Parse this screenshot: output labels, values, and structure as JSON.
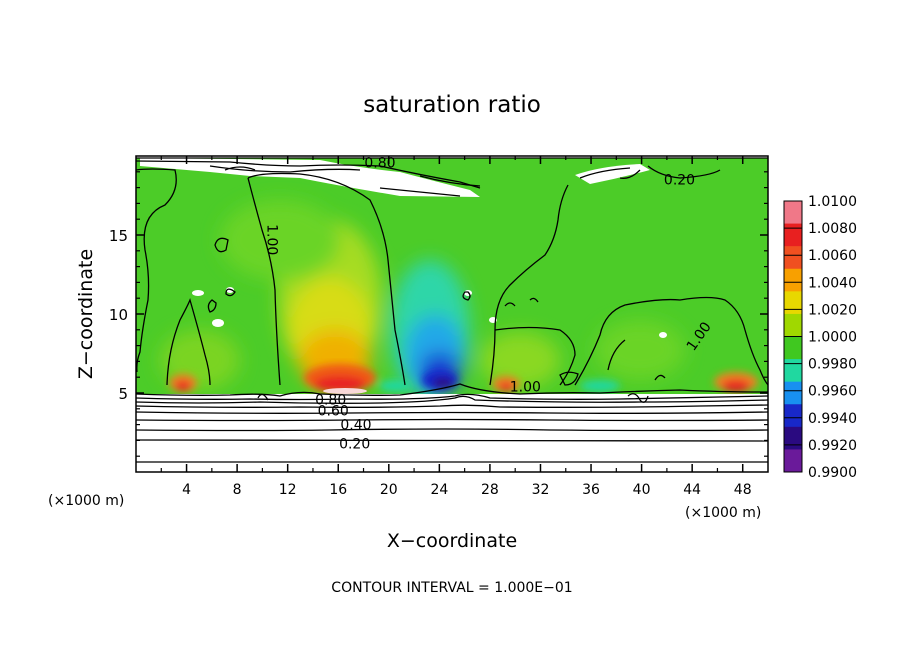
{
  "chart_data": {
    "type": "heatmap",
    "title": "saturation ratio",
    "xlabel": "X−coordinate",
    "ylabel": "Z−coordinate",
    "x_unit_left": "(×1000 m)",
    "x_unit_right": "(×1000 m)",
    "xlim": [
      0,
      50
    ],
    "ylim": [
      0,
      20
    ],
    "x_ticks": [
      4,
      8,
      12,
      16,
      20,
      24,
      28,
      32,
      36,
      40,
      44,
      48
    ],
    "y_ticks": [
      5,
      10,
      15
    ],
    "colorbar": {
      "labels": [
        "1.0100",
        "1.0080",
        "1.0060",
        "1.0040",
        "1.0020",
        "1.0000",
        "0.9980",
        "0.9960",
        "0.9940",
        "0.9920",
        "0.9900"
      ],
      "colors": [
        "#f07888",
        "#e82020",
        "#f05020",
        "#f8a000",
        "#e8d800",
        "#a0d800",
        "#40c820",
        "#20d8a0",
        "#1890f0",
        "#1828c8",
        "#2a0a80",
        "#6a1a9a"
      ]
    },
    "contour_labels": [
      {
        "text": "0.80",
        "x": 19.3,
        "y": 19.6
      },
      {
        "text": "0.20",
        "x": 43,
        "y": 18.5
      },
      {
        "text": "1.00",
        "x": 10.8,
        "y": 14.7
      },
      {
        "text": "1.00",
        "x": 44.5,
        "y": 8.6
      },
      {
        "text": "1.00",
        "x": 30.8,
        "y": 5.4
      },
      {
        "text": "0.80",
        "x": 15.4,
        "y": 4.6
      },
      {
        "text": "0.60",
        "x": 15.6,
        "y": 3.9
      },
      {
        "text": "0.40",
        "x": 17.4,
        "y": 3.0
      },
      {
        "text": "0.20",
        "x": 17.3,
        "y": 1.8
      }
    ],
    "contour_interval": "CONTOUR INTERVAL = 1.000E−01"
  }
}
